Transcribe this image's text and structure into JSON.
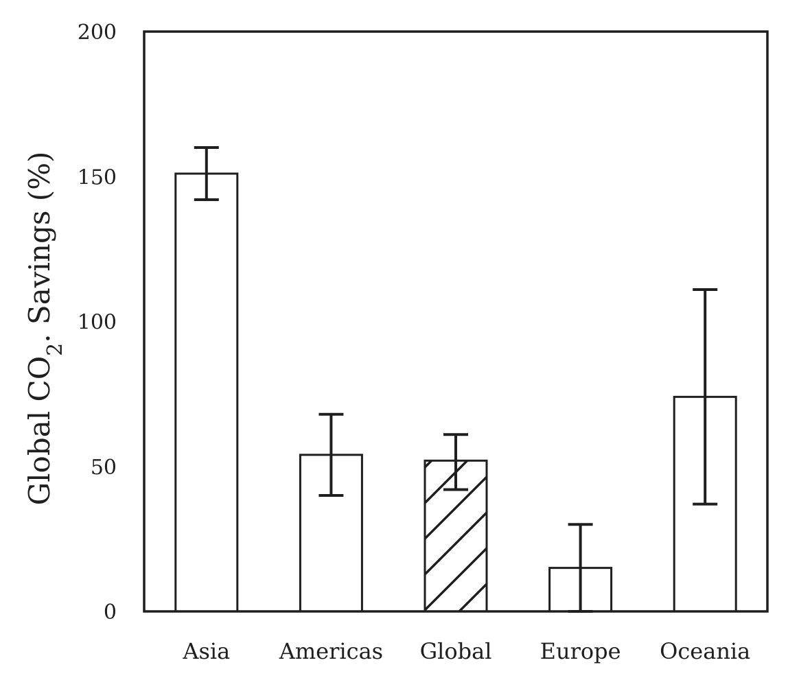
{
  "chart_data": {
    "type": "bar",
    "title": "",
    "xlabel": "",
    "ylabel": "Global CO",
    "ylabel_subscript": "2",
    "ylabel_suffix": ". Savings (%)",
    "ylim": [
      0,
      200
    ],
    "yticks": [
      "0",
      "50",
      "100",
      "150",
      "200"
    ],
    "categories": [
      "Asia",
      "Americas",
      "Global",
      "Europe",
      "Oceania"
    ],
    "values": [
      151,
      54,
      52,
      15,
      74
    ],
    "error_low": [
      142,
      40,
      42,
      0,
      37
    ],
    "error_high": [
      160,
      68,
      61,
      30,
      111
    ],
    "hatched_category": "Global",
    "grid": false,
    "colors": {
      "bar_fill": "#ffffff",
      "stroke": "#1f1f1f"
    }
  }
}
